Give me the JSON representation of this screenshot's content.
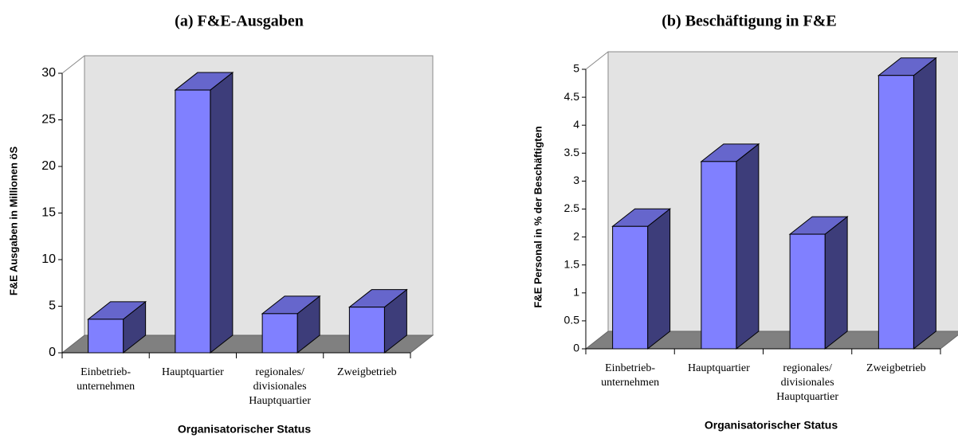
{
  "chart_data": [
    {
      "type": "bar",
      "three_d": true,
      "title": "(a) F&E-Ausgaben",
      "xlabel": "Organisatorischer Status",
      "ylabel": "F&E Ausgaben in Millionen öS",
      "categories": [
        "Einbetrieb-\nunternehmen",
        "Hauptquartier",
        "regionales/\ndivisionales\nHauptquartier",
        "Zweigbetrieb"
      ],
      "values": [
        3.6,
        28.2,
        4.2,
        4.9
      ],
      "color": "#8080ff",
      "ylim": [
        0,
        30
      ],
      "yticks": [
        0,
        5,
        10,
        15,
        20,
        25,
        30
      ]
    },
    {
      "type": "bar",
      "three_d": true,
      "title": "(b) Beschäftigung in F&E",
      "xlabel": "Organisatorischer Status",
      "ylabel": "F&E Personal in % der Beschäftigten",
      "categories": [
        "Einbetrieb-\nunternehmen",
        "Hauptquartier",
        "regionales/\ndivisionales\nHauptquartier",
        "Zweigbetrieb"
      ],
      "values": [
        2.19,
        3.35,
        2.05,
        4.89
      ],
      "color": "#8080ff",
      "ylim": [
        0,
        5
      ],
      "yticks": [
        0,
        0.5,
        1,
        1.5,
        2,
        2.5,
        3,
        3.5,
        4,
        4.5,
        5
      ]
    }
  ]
}
